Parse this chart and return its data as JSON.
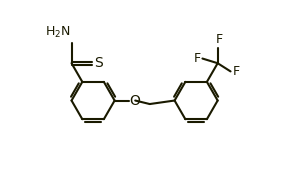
{
  "bg_color": "#ffffff",
  "bond_color": "#1a1a00",
  "text_color": "#1a1a00",
  "line_width": 1.5,
  "font_size": 8.5,
  "fig_width": 3.05,
  "fig_height": 1.84,
  "dpi": 100,
  "xlim": [
    0,
    10
  ],
  "ylim": [
    0,
    6.05
  ]
}
